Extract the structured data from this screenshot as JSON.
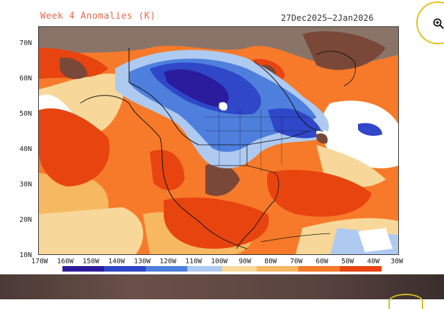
{
  "map": {
    "title": "Week 4 Anomalies (K)",
    "date_range": "27Dec2025–2Jan2026",
    "lat_labels": [
      "70N",
      "60N",
      "50N",
      "40N",
      "30N",
      "20N",
      "10N"
    ],
    "lon_labels": [
      "170W",
      "160W",
      "150W",
      "140W",
      "130W",
      "120W",
      "110W",
      "100W",
      "90W",
      "80W",
      "70W",
      "60W",
      "50W",
      "40W",
      "30W"
    ],
    "colors": {
      "strong_warm": "#e8440f",
      "warm": "#f77a2a",
      "light_warm": "#f6b860",
      "pale_warm": "#f8d89a",
      "neutral": "#ffffff",
      "pale_cold": "#aecaf0",
      "cold": "#4e7fdd",
      "strong_cold": "#2f47c8",
      "deep_cold": "#2a1c9c",
      "extreme_warm": "#7a4838",
      "missing": "#8a7468"
    }
  },
  "toolbar": {
    "zoom_icon": "zoom-in-icon"
  }
}
